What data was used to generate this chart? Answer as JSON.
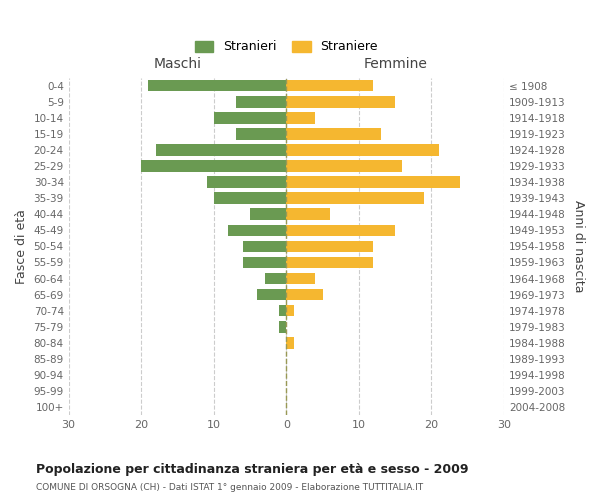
{
  "age_groups": [
    "0-4",
    "5-9",
    "10-14",
    "15-19",
    "20-24",
    "25-29",
    "30-34",
    "35-39",
    "40-44",
    "45-49",
    "50-54",
    "55-59",
    "60-64",
    "65-69",
    "70-74",
    "75-79",
    "80-84",
    "85-89",
    "90-94",
    "95-99",
    "100+"
  ],
  "birth_years": [
    "2004-2008",
    "1999-2003",
    "1994-1998",
    "1989-1993",
    "1984-1988",
    "1979-1983",
    "1974-1978",
    "1969-1973",
    "1964-1968",
    "1959-1963",
    "1954-1958",
    "1949-1953",
    "1944-1948",
    "1939-1943",
    "1934-1938",
    "1929-1933",
    "1924-1928",
    "1919-1923",
    "1914-1918",
    "1909-1913",
    "≤ 1908"
  ],
  "males": [
    19,
    7,
    10,
    7,
    18,
    20,
    11,
    10,
    5,
    8,
    6,
    6,
    3,
    4,
    1,
    1,
    0,
    0,
    0,
    0,
    0
  ],
  "females": [
    12,
    15,
    4,
    13,
    21,
    16,
    24,
    19,
    6,
    15,
    12,
    12,
    4,
    5,
    1,
    0,
    1,
    0,
    0,
    0,
    0
  ],
  "male_color": "#6a9a52",
  "female_color": "#f5b730",
  "title": "Popolazione per cittadinanza straniera per età e sesso - 2009",
  "subtitle": "COMUNE DI ORSOGNA (CH) - Dati ISTAT 1° gennaio 2009 - Elaborazione TUTTITALIA.IT",
  "xlabel_left": "Maschi",
  "xlabel_right": "Femmine",
  "ylabel_left": "Fasce di età",
  "ylabel_right": "Anni di nascita",
  "legend_male": "Stranieri",
  "legend_female": "Straniere",
  "xlim": 30,
  "background_color": "#ffffff",
  "grid_color": "#cccccc",
  "dashed_line_color": "#999955"
}
